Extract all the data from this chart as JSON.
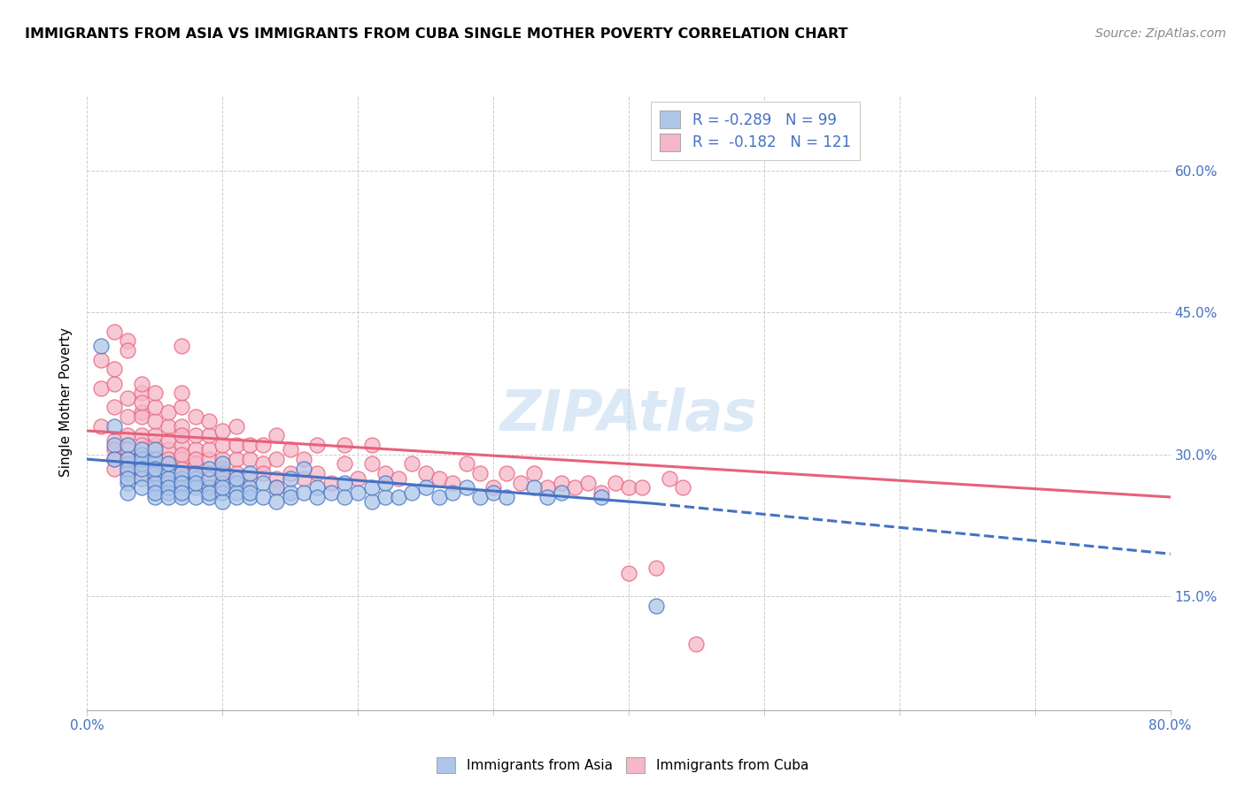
{
  "title": "IMMIGRANTS FROM ASIA VS IMMIGRANTS FROM CUBA SINGLE MOTHER POVERTY CORRELATION CHART",
  "source": "Source: ZipAtlas.com",
  "ylabel": "Single Mother Poverty",
  "ytick_labels": [
    "15.0%",
    "30.0%",
    "45.0%",
    "60.0%"
  ],
  "ytick_values": [
    0.15,
    0.3,
    0.45,
    0.6
  ],
  "xlim": [
    0.0,
    0.8
  ],
  "ylim": [
    0.03,
    0.68
  ],
  "asia_color": "#aec6e8",
  "cuba_color": "#f4b8c8",
  "asia_line_color": "#4472c4",
  "cuba_line_color": "#e8607a",
  "legend_label_asia": "Immigrants from Asia",
  "legend_label_cuba": "Immigrants from Cuba",
  "asia_scatter_x": [
    0.01,
    0.02,
    0.02,
    0.02,
    0.03,
    0.03,
    0.03,
    0.03,
    0.03,
    0.03,
    0.03,
    0.03,
    0.04,
    0.04,
    0.04,
    0.04,
    0.04,
    0.04,
    0.04,
    0.05,
    0.05,
    0.05,
    0.05,
    0.05,
    0.05,
    0.05,
    0.05,
    0.05,
    0.05,
    0.06,
    0.06,
    0.06,
    0.06,
    0.06,
    0.06,
    0.06,
    0.07,
    0.07,
    0.07,
    0.07,
    0.07,
    0.07,
    0.08,
    0.08,
    0.08,
    0.08,
    0.08,
    0.09,
    0.09,
    0.09,
    0.09,
    0.09,
    0.1,
    0.1,
    0.1,
    0.1,
    0.1,
    0.1,
    0.11,
    0.11,
    0.11,
    0.11,
    0.12,
    0.12,
    0.12,
    0.12,
    0.13,
    0.13,
    0.14,
    0.14,
    0.15,
    0.15,
    0.15,
    0.16,
    0.16,
    0.17,
    0.17,
    0.18,
    0.19,
    0.19,
    0.2,
    0.21,
    0.21,
    0.22,
    0.22,
    0.23,
    0.24,
    0.25,
    0.26,
    0.27,
    0.28,
    0.29,
    0.3,
    0.31,
    0.33,
    0.34,
    0.35,
    0.38,
    0.42
  ],
  "asia_scatter_y": [
    0.415,
    0.33,
    0.31,
    0.295,
    0.31,
    0.29,
    0.28,
    0.27,
    0.295,
    0.285,
    0.275,
    0.26,
    0.3,
    0.29,
    0.275,
    0.265,
    0.295,
    0.305,
    0.285,
    0.29,
    0.275,
    0.265,
    0.255,
    0.28,
    0.295,
    0.305,
    0.27,
    0.285,
    0.26,
    0.28,
    0.27,
    0.26,
    0.275,
    0.29,
    0.265,
    0.255,
    0.275,
    0.265,
    0.28,
    0.255,
    0.27,
    0.26,
    0.275,
    0.265,
    0.255,
    0.28,
    0.27,
    0.265,
    0.255,
    0.275,
    0.26,
    0.285,
    0.27,
    0.26,
    0.25,
    0.28,
    0.265,
    0.29,
    0.27,
    0.26,
    0.255,
    0.275,
    0.265,
    0.255,
    0.28,
    0.26,
    0.27,
    0.255,
    0.265,
    0.25,
    0.26,
    0.255,
    0.275,
    0.26,
    0.285,
    0.265,
    0.255,
    0.26,
    0.27,
    0.255,
    0.26,
    0.25,
    0.265,
    0.255,
    0.27,
    0.255,
    0.26,
    0.265,
    0.255,
    0.26,
    0.265,
    0.255,
    0.26,
    0.255,
    0.265,
    0.255,
    0.26,
    0.255,
    0.14
  ],
  "asia_line_x_start": 0.0,
  "asia_line_x_solid_end": 0.42,
  "asia_line_x_end": 0.8,
  "asia_line_y_start": 0.295,
  "asia_line_y_solid_end": 0.248,
  "asia_line_y_end": 0.195,
  "cuba_scatter_x": [
    0.01,
    0.01,
    0.01,
    0.02,
    0.02,
    0.02,
    0.02,
    0.02,
    0.02,
    0.02,
    0.02,
    0.03,
    0.03,
    0.03,
    0.03,
    0.03,
    0.03,
    0.03,
    0.03,
    0.04,
    0.04,
    0.04,
    0.04,
    0.04,
    0.04,
    0.04,
    0.04,
    0.04,
    0.04,
    0.05,
    0.05,
    0.05,
    0.05,
    0.05,
    0.05,
    0.05,
    0.05,
    0.06,
    0.06,
    0.06,
    0.06,
    0.06,
    0.06,
    0.07,
    0.07,
    0.07,
    0.07,
    0.07,
    0.07,
    0.07,
    0.07,
    0.07,
    0.07,
    0.08,
    0.08,
    0.08,
    0.08,
    0.08,
    0.08,
    0.09,
    0.09,
    0.09,
    0.09,
    0.09,
    0.09,
    0.1,
    0.1,
    0.1,
    0.1,
    0.1,
    0.11,
    0.11,
    0.11,
    0.11,
    0.12,
    0.12,
    0.12,
    0.13,
    0.13,
    0.13,
    0.14,
    0.14,
    0.14,
    0.14,
    0.15,
    0.15,
    0.16,
    0.16,
    0.17,
    0.17,
    0.18,
    0.19,
    0.19,
    0.2,
    0.21,
    0.21,
    0.22,
    0.23,
    0.24,
    0.25,
    0.26,
    0.27,
    0.28,
    0.29,
    0.3,
    0.31,
    0.32,
    0.33,
    0.34,
    0.35,
    0.36,
    0.37,
    0.38,
    0.39,
    0.4,
    0.4,
    0.41,
    0.42,
    0.43,
    0.44,
    0.45
  ],
  "cuba_scatter_y": [
    0.33,
    0.37,
    0.4,
    0.35,
    0.375,
    0.315,
    0.305,
    0.39,
    0.43,
    0.295,
    0.285,
    0.36,
    0.34,
    0.32,
    0.305,
    0.285,
    0.295,
    0.42,
    0.41,
    0.365,
    0.345,
    0.32,
    0.3,
    0.31,
    0.29,
    0.28,
    0.34,
    0.355,
    0.375,
    0.31,
    0.295,
    0.28,
    0.32,
    0.335,
    0.35,
    0.365,
    0.29,
    0.305,
    0.285,
    0.295,
    0.33,
    0.315,
    0.345,
    0.31,
    0.295,
    0.28,
    0.33,
    0.35,
    0.32,
    0.365,
    0.3,
    0.285,
    0.415,
    0.305,
    0.29,
    0.28,
    0.295,
    0.32,
    0.34,
    0.295,
    0.28,
    0.305,
    0.32,
    0.265,
    0.335,
    0.295,
    0.285,
    0.275,
    0.31,
    0.325,
    0.295,
    0.28,
    0.31,
    0.33,
    0.295,
    0.275,
    0.31,
    0.29,
    0.28,
    0.31,
    0.275,
    0.295,
    0.265,
    0.32,
    0.28,
    0.305,
    0.275,
    0.295,
    0.28,
    0.31,
    0.27,
    0.29,
    0.31,
    0.275,
    0.29,
    0.31,
    0.28,
    0.275,
    0.29,
    0.28,
    0.275,
    0.27,
    0.29,
    0.28,
    0.265,
    0.28,
    0.27,
    0.28,
    0.265,
    0.27,
    0.265,
    0.27,
    0.26,
    0.27,
    0.265,
    0.175,
    0.265,
    0.18,
    0.275,
    0.265,
    0.1
  ],
  "cuba_line_x_start": 0.0,
  "cuba_line_x_end": 0.8,
  "cuba_line_y_start": 0.325,
  "cuba_line_y_end": 0.255
}
